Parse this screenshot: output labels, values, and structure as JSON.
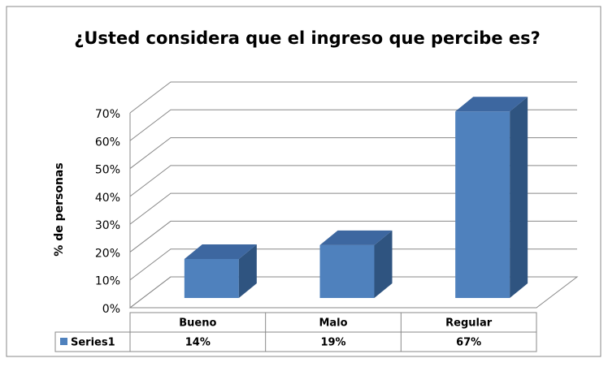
{
  "chart_data": {
    "type": "bar3d",
    "title": "¿Usted considera que el ingreso que percibe es?",
    "y_label": "% de personas",
    "categories": [
      "Bueno",
      "Malo",
      "Regular"
    ],
    "series": [
      {
        "name": "Series1",
        "color": "#4f81bd",
        "values": [
          14,
          19,
          67
        ],
        "value_labels": [
          "14%",
          "19%",
          "67%"
        ]
      }
    ],
    "ylim": [
      0,
      70
    ],
    "yticks": [
      {
        "value": 0,
        "label": "0%"
      },
      {
        "value": 10,
        "label": "10%"
      },
      {
        "value": 20,
        "label": "20%"
      },
      {
        "value": 30,
        "label": "30%"
      },
      {
        "value": 40,
        "label": "40%"
      },
      {
        "value": 50,
        "label": "50%"
      },
      {
        "value": 60,
        "label": "60%"
      },
      {
        "value": 70,
        "label": "70%"
      }
    ],
    "grid": true,
    "legend": "table"
  }
}
